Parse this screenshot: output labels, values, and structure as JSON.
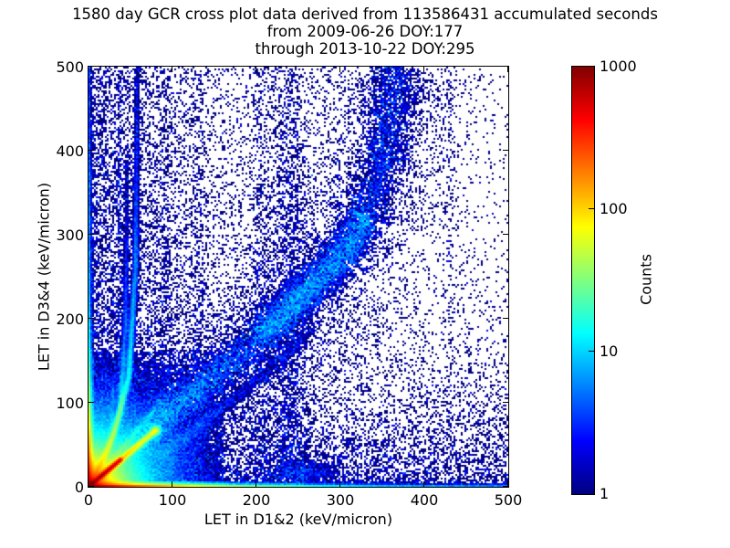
{
  "chart_data": {
    "type": "heatmap",
    "title": "1580 day GCR cross plot data derived from 113586431 accumulated seconds",
    "subtitle1": "from 2009-06-26 DOY:177",
    "subtitle2": "through 2013-10-22 DOY:295",
    "xlabel": "LET in D1&2 (keV/micron)",
    "ylabel": "LET in D3&4 (keV/micron)",
    "xlim": [
      0,
      500
    ],
    "ylim": [
      0,
      500
    ],
    "xticks": [
      0,
      100,
      200,
      300,
      400,
      500
    ],
    "yticks": [
      0,
      100,
      200,
      300,
      400,
      500
    ],
    "grid": false,
    "background_color": "#ffffff",
    "axis_color": "#000000",
    "colorbar": {
      "label": "Counts",
      "scale": "log",
      "vmin": 1,
      "vmax": 1000,
      "ticks": [
        1,
        10,
        100,
        1000
      ],
      "colormap": "jet",
      "stops": [
        "#000080",
        "#0000ff",
        "#00ffff",
        "#ffff00",
        "#ff0000",
        "#800000"
      ],
      "stop_pos": [
        0,
        12.5,
        37.5,
        62.5,
        87.5,
        100
      ]
    },
    "density_model": {
      "seed": 1337,
      "bins": 230,
      "range": 500,
      "fields": [
        {
          "n": 6000,
          "x": {
            "dist": "exp",
            "scale": 90
          },
          "y": {
            "dist": "uniform"
          }
        },
        {
          "n": 6000,
          "x": {
            "dist": "uniform"
          },
          "y": {
            "dist": "exp",
            "scale": 70
          }
        },
        {
          "n": 2600,
          "x": {
            "dist": "pow",
            "p": 1.25
          },
          "y": {
            "dist": "pow",
            "p": 1.1
          }
        },
        {
          "n": 4200,
          "x": {
            "dist": "exp",
            "scale": 200
          },
          "y": {
            "dist": "exp",
            "scale": 200
          }
        }
      ],
      "glow": {
        "diag": [
          700,
          11
        ],
        "radial": [
          [
            120,
            25
          ],
          [
            10,
            55
          ]
        ],
        "extent": 160
      },
      "bottom_rows": {
        "terms": [
          [
            500,
            55
          ],
          [
            35,
            160
          ]
        ],
        "base": 3,
        "row_fade": [
          1,
          0.25,
          0.08
        ]
      },
      "left_cols": {
        "terms": [
          [
            300,
            40
          ],
          [
            20,
            150
          ]
        ],
        "base": 2,
        "col_fade": [
          1,
          0.3,
          0.1
        ]
      },
      "streaks": [
        {
          "path": [
            [
              0,
              0
            ],
            [
              38,
              32
            ]
          ],
          "sigma": 1.6,
          "peak": 600,
          "fade": 0.4
        },
        {
          "path": [
            [
              14,
              12
            ],
            [
              80,
              67
            ]
          ],
          "sigma": 2.2,
          "peak": 130,
          "fade": 1.0
        },
        {
          "path": [
            [
              2,
              2
            ],
            [
              30,
              62
            ],
            [
              48,
              130
            ],
            [
              56,
              260
            ],
            [
              58,
              500
            ]
          ],
          "sigma": 2.2,
          "peak": 30,
          "fade": 3.2
        },
        {
          "path": [
            [
              2,
              2
            ],
            [
              24,
              44
            ],
            [
              38,
              92
            ],
            [
              44,
              190
            ],
            [
              46,
              400
            ]
          ],
          "sigma": 2.0,
          "peak": 20,
          "fade": 3.2
        },
        {
          "path": [
            [
              2,
              2
            ],
            [
              18,
              28
            ],
            [
              27,
              64
            ],
            [
              30,
              130
            ]
          ],
          "sigma": 2.0,
          "peak": 12,
          "fade": 2.5
        },
        {
          "path": [
            [
              5,
              5
            ],
            [
              55,
              62
            ],
            [
              85,
              100
            ]
          ],
          "sigma": 2.5,
          "peak": 22,
          "fade": 2.2
        },
        {
          "path": [
            [
              90,
              40
            ],
            [
              180,
              110
            ],
            [
              265,
              185
            ]
          ],
          "sigma": 5,
          "peak": 2.2,
          "fade": 0.8
        }
      ],
      "band": {
        "path": [
          [
            0,
            0
          ],
          [
            90,
            84
          ],
          [
            180,
            155
          ],
          [
            253,
            225
          ],
          [
            300,
            272
          ],
          [
            330,
            320
          ],
          [
            348,
            375
          ],
          [
            360,
            440
          ],
          [
            366,
            500
          ]
        ],
        "n": 12000,
        "t_pow": 1.15,
        "sigma0": 8,
        "sigma1": 17,
        "halo_n": 6000,
        "halo_mul": 3.2,
        "clump": {
          "n": 3500,
          "t0": 0.42,
          "t1": 0.72,
          "sigma": 11
        }
      },
      "vbands": [
        {
          "x": 240,
          "sx": 13,
          "n": 2200,
          "y_pow": 1.35
        },
        {
          "x": 205,
          "sx": 8,
          "n": 700,
          "y_pow": 1.2
        },
        {
          "x": 90,
          "sx": 7,
          "n": 550,
          "y_pow": 1.2
        },
        {
          "x": 130,
          "sx": 5,
          "n": 380,
          "y_pow": 1.1
        },
        {
          "x": 37,
          "sx": 1.2,
          "n": 230,
          "y_pow": 1.0
        },
        {
          "x": 430,
          "sx": 2,
          "n": 130,
          "y_pow": 0.9
        }
      ],
      "blobs": [
        {
          "x": 80,
          "y": 67,
          "sx": 4,
          "sy": 4,
          "peak": 22
        },
        {
          "x": 262,
          "y": 18,
          "sx": 24,
          "sy": 8,
          "peak": 1.8
        }
      ]
    }
  }
}
